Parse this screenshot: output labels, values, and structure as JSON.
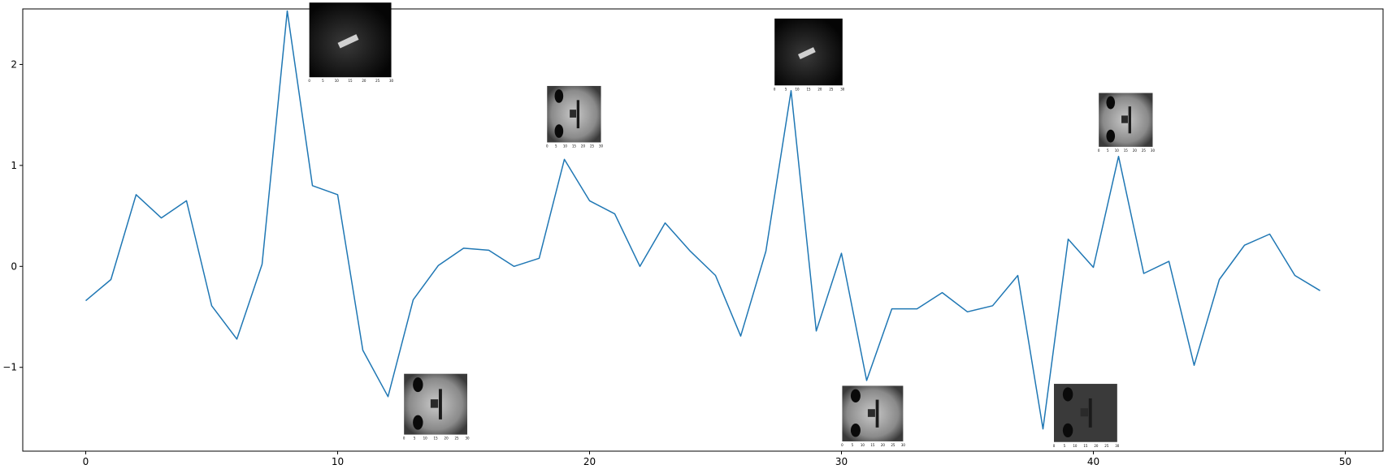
{
  "chart_data": {
    "type": "line",
    "title": "",
    "xlabel": "",
    "ylabel": "",
    "xlim": [
      -2.5,
      51.5
    ],
    "ylim": [
      -1.83,
      2.55
    ],
    "x_ticks": [
      0,
      10,
      20,
      30,
      40,
      50
    ],
    "y_ticks": [
      -1,
      0,
      1,
      2
    ],
    "y_tick_labels": [
      "−1",
      "0",
      "1",
      "2"
    ],
    "grid": false,
    "legend": "none",
    "series": [
      {
        "color": "#1f77b4",
        "x": [
          0,
          1,
          2,
          3,
          4,
          5,
          6,
          7,
          8,
          9,
          10,
          11,
          12,
          13,
          14,
          15,
          16,
          17,
          18,
          19,
          20,
          21,
          22,
          23,
          24,
          25,
          26,
          27,
          28,
          29,
          30,
          31,
          32,
          33,
          34,
          35,
          36,
          37,
          38,
          39,
          40,
          41,
          42,
          43,
          44,
          45,
          46,
          47,
          48,
          49
        ],
        "values": [
          -0.34,
          -0.13,
          0.71,
          0.48,
          0.65,
          -0.39,
          -0.72,
          0.02,
          2.53,
          0.8,
          0.71,
          -0.83,
          -1.29,
          -0.33,
          0.01,
          0.18,
          0.16,
          0.0,
          0.08,
          1.06,
          0.65,
          0.52,
          0.0,
          0.43,
          0.15,
          -0.09,
          -0.69,
          0.15,
          1.74,
          -0.64,
          0.13,
          -1.13,
          -0.42,
          -0.42,
          -0.26,
          -0.45,
          -0.39,
          -0.09,
          -1.61,
          0.27,
          -0.01,
          1.09,
          -0.07,
          0.05,
          -0.98,
          -0.13,
          0.21,
          0.32,
          -0.09,
          -0.24
        ]
      }
    ],
    "inset_images": [
      {
        "kind": "dark-patch",
        "axis_ticks": [
          "0",
          "5",
          "10",
          "15",
          "20",
          "25",
          "30"
        ]
      },
      {
        "kind": "face",
        "axis_ticks": [
          "0",
          "5",
          "10",
          "15",
          "20",
          "25",
          "30"
        ]
      },
      {
        "kind": "dark-patch",
        "axis_ticks": [
          "0",
          "5",
          "10",
          "15",
          "20",
          "25",
          "30"
        ]
      },
      {
        "kind": "face",
        "axis_ticks": [
          "0",
          "5",
          "10",
          "15",
          "20",
          "25",
          "30"
        ]
      },
      {
        "kind": "face",
        "axis_ticks": [
          "0",
          "5",
          "10",
          "15",
          "20",
          "25",
          "30"
        ]
      },
      {
        "kind": "face",
        "axis_ticks": [
          "0",
          "5",
          "10",
          "15",
          "20",
          "25",
          "30"
        ]
      },
      {
        "kind": "face-dark",
        "axis_ticks": [
          "0",
          "5",
          "10",
          "15",
          "20",
          "25",
          "30"
        ]
      }
    ]
  }
}
